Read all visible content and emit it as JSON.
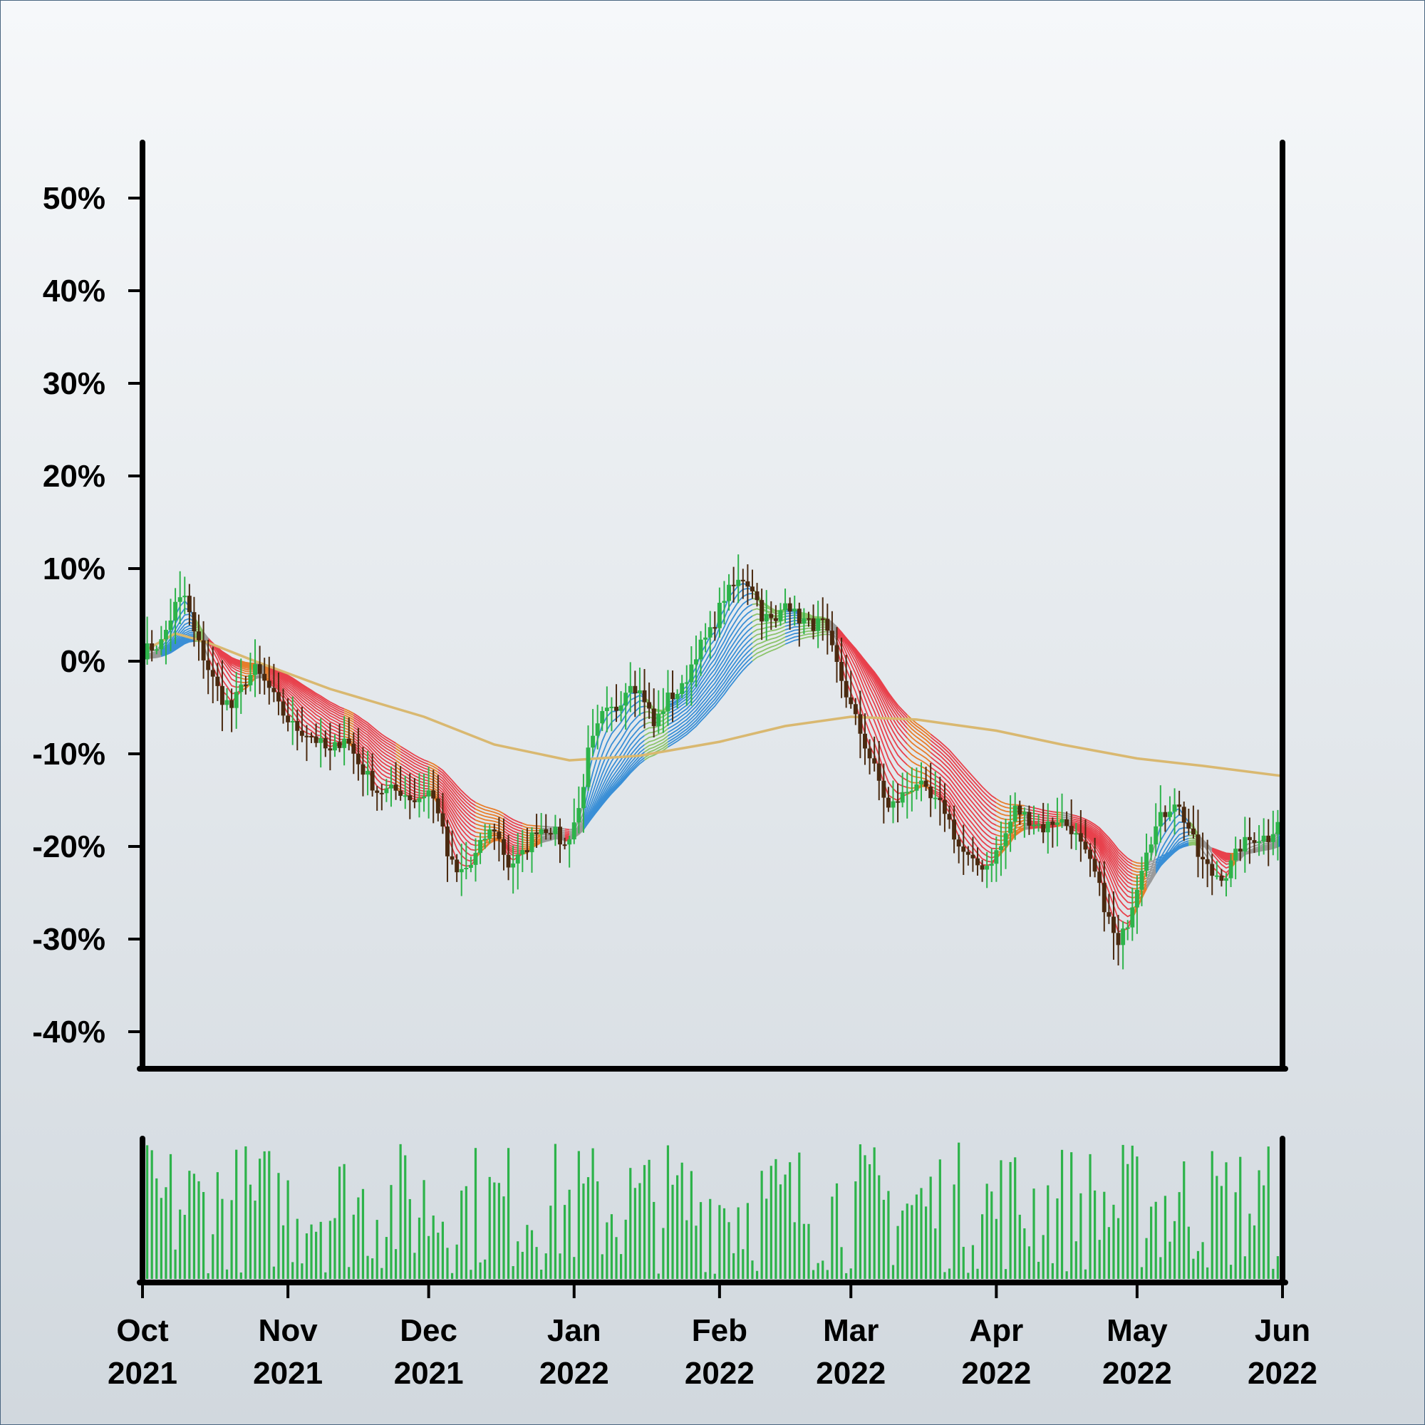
{
  "chart_data": {
    "type": "candlestick",
    "title": "",
    "xlabel": "",
    "ylabel": "",
    "y_unit": "%",
    "ylim": [
      -44,
      56
    ],
    "yticks": [
      50,
      40,
      30,
      20,
      10,
      0,
      -10,
      -20,
      -30,
      -40
    ],
    "ytick_labels": [
      "50%",
      "40%",
      "30%",
      "20%",
      "10%",
      "0%",
      "-10%",
      "-20%",
      "-30%",
      "-40%"
    ],
    "xlim": [
      "2021-10-01",
      "2022-06-01"
    ],
    "xticks": [
      "2021-10-01",
      "2021-11-01",
      "2021-12-01",
      "2022-01-01",
      "2022-02-01",
      "2022-03-01",
      "2022-04-01",
      "2022-05-01",
      "2022-06-01"
    ],
    "xtick_labels": [
      [
        "Oct",
        "2021"
      ],
      [
        "Nov",
        "2021"
      ],
      [
        "Dec",
        "2021"
      ],
      [
        "Jan",
        "2022"
      ],
      [
        "Feb",
        "2022"
      ],
      [
        "Mar",
        "2022"
      ],
      [
        "Apr",
        "2022"
      ],
      [
        "May",
        "2022"
      ],
      [
        "Jun",
        "2022"
      ]
    ],
    "grid": false,
    "legend": "none",
    "price_path": [
      [
        "2021-10-01",
        1
      ],
      [
        "2021-10-05",
        2
      ],
      [
        "2021-10-08",
        6
      ],
      [
        "2021-10-10",
        7
      ],
      [
        "2021-10-12",
        3
      ],
      [
        "2021-10-16",
        -2
      ],
      [
        "2021-10-18",
        -4
      ],
      [
        "2021-10-20",
        -5
      ],
      [
        "2021-10-23",
        -2
      ],
      [
        "2021-10-25",
        -1
      ],
      [
        "2021-10-28",
        -3
      ],
      [
        "2021-10-30",
        -5
      ],
      [
        "2021-11-02",
        -7
      ],
      [
        "2021-11-06",
        -8
      ],
      [
        "2021-11-10",
        -10
      ],
      [
        "2021-11-13",
        -8
      ],
      [
        "2021-11-16",
        -11
      ],
      [
        "2021-11-20",
        -14
      ],
      [
        "2021-11-25",
        -14
      ],
      [
        "2021-11-28",
        -15
      ],
      [
        "2021-12-01",
        -14
      ],
      [
        "2021-12-03",
        -16
      ],
      [
        "2021-12-05",
        -21
      ],
      [
        "2021-12-07",
        -23
      ],
      [
        "2021-12-10",
        -22
      ],
      [
        "2021-12-13",
        -19
      ],
      [
        "2021-12-15",
        -18
      ],
      [
        "2021-12-18",
        -22
      ],
      [
        "2021-12-21",
        -21
      ],
      [
        "2021-12-24",
        -18
      ],
      [
        "2021-12-27",
        -18
      ],
      [
        "2021-12-30",
        -20
      ],
      [
        "2022-01-02",
        -16
      ],
      [
        "2022-01-04",
        -10
      ],
      [
        "2022-01-07",
        -6
      ],
      [
        "2022-01-10",
        -5
      ],
      [
        "2022-01-13",
        -2
      ],
      [
        "2022-01-16",
        -4
      ],
      [
        "2022-01-18",
        -7
      ],
      [
        "2022-01-21",
        -4
      ],
      [
        "2022-01-24",
        -3
      ],
      [
        "2022-01-27",
        1
      ],
      [
        "2022-01-30",
        3
      ],
      [
        "2022-02-02",
        7
      ],
      [
        "2022-02-04",
        8
      ],
      [
        "2022-02-06",
        9
      ],
      [
        "2022-02-08",
        8
      ],
      [
        "2022-02-10",
        5
      ],
      [
        "2022-02-13",
        4
      ],
      [
        "2022-02-15",
        7
      ],
      [
        "2022-02-17",
        5
      ],
      [
        "2022-02-20",
        4
      ],
      [
        "2022-02-23",
        4
      ],
      [
        "2022-02-25",
        1
      ],
      [
        "2022-02-27",
        -2
      ],
      [
        "2022-03-01",
        -5
      ],
      [
        "2022-03-04",
        -9
      ],
      [
        "2022-03-07",
        -13
      ],
      [
        "2022-03-09",
        -16
      ],
      [
        "2022-03-11",
        -15
      ],
      [
        "2022-03-15",
        -13
      ],
      [
        "2022-03-18",
        -15
      ],
      [
        "2022-03-21",
        -16
      ],
      [
        "2022-03-24",
        -20
      ],
      [
        "2022-03-27",
        -22
      ],
      [
        "2022-03-30",
        -22
      ],
      [
        "2022-04-02",
        -20
      ],
      [
        "2022-04-05",
        -16
      ],
      [
        "2022-04-08",
        -17
      ],
      [
        "2022-04-11",
        -18
      ],
      [
        "2022-04-14",
        -17
      ],
      [
        "2022-04-17",
        -18
      ],
      [
        "2022-04-20",
        -21
      ],
      [
        "2022-04-22",
        -23
      ],
      [
        "2022-04-25",
        -28
      ],
      [
        "2022-04-27",
        -31
      ],
      [
        "2022-04-29",
        -28
      ],
      [
        "2022-05-01",
        -24
      ],
      [
        "2022-05-03",
        -20
      ],
      [
        "2022-05-06",
        -17
      ],
      [
        "2022-05-09",
        -15
      ],
      [
        "2022-05-12",
        -18
      ],
      [
        "2022-05-14",
        -21
      ],
      [
        "2022-05-17",
        -23
      ],
      [
        "2022-05-20",
        -23
      ],
      [
        "2022-05-23",
        -20
      ],
      [
        "2022-05-26",
        -19
      ],
      [
        "2022-05-29",
        -19
      ],
      [
        "2022-06-01",
        -16
      ]
    ],
    "long_average_path": [
      [
        "2021-10-01",
        1
      ],
      [
        "2021-10-08",
        3
      ],
      [
        "2021-10-15",
        2
      ],
      [
        "2021-10-25",
        0
      ],
      [
        "2021-11-10",
        -3
      ],
      [
        "2021-11-30",
        -6
      ],
      [
        "2021-12-15",
        -9
      ],
      [
        "2021-12-31",
        -10.7
      ],
      [
        "2022-01-15",
        -10.2
      ],
      [
        "2022-02-01",
        -8.7
      ],
      [
        "2022-02-15",
        -7
      ],
      [
        "2022-03-01",
        -6
      ],
      [
        "2022-03-15",
        -6.3
      ],
      [
        "2022-04-01",
        -7.5
      ],
      [
        "2022-04-15",
        -9
      ],
      [
        "2022-05-01",
        -10.5
      ],
      [
        "2022-05-15",
        -11.3
      ],
      [
        "2022-06-01",
        -12.4
      ]
    ],
    "series": [
      {
        "role": "candles",
        "up_color": "#2db34a",
        "down_color": "#4a2a10"
      },
      {
        "role": "short-average-ribbon",
        "colors": [
          "#e8414c",
          "#e87d2b",
          "#3a8fd6",
          "#8cc46b",
          "#9a9a9a"
        ]
      },
      {
        "role": "long-average",
        "color": "#d9b870"
      },
      {
        "role": "volume",
        "color": "#2db34a"
      }
    ]
  }
}
